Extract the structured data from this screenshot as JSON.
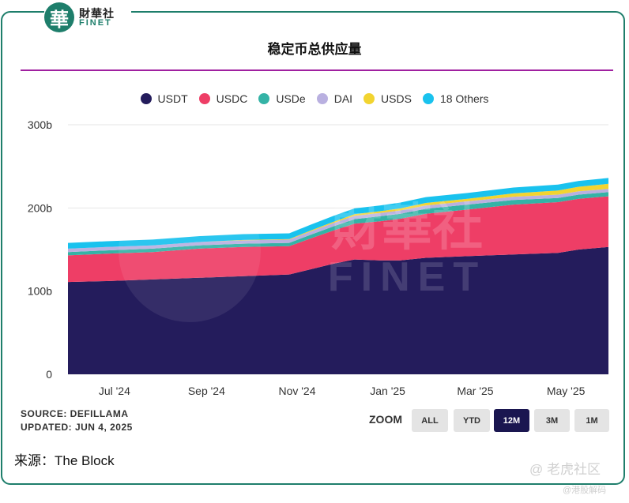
{
  "logo": {
    "mark": "華",
    "cn": "財華社",
    "en": "FINET"
  },
  "title": "稳定币总供应量",
  "legend": [
    {
      "name": "USDT",
      "color": "#241c5c"
    },
    {
      "name": "USDC",
      "color": "#ee3e66"
    },
    {
      "name": "USDe",
      "color": "#34b3a6"
    },
    {
      "name": "DAI",
      "color": "#b9b0e0"
    },
    {
      "name": "USDS",
      "color": "#f2d430"
    },
    {
      "name": "18 Others",
      "color": "#19c2ee"
    }
  ],
  "chart_data": {
    "type": "area",
    "stacked": true,
    "x_ticks": [
      "Jul '24",
      "Sep '24",
      "Nov '24",
      "Jan '25",
      "Mar '25",
      "May '25"
    ],
    "y_ticks": [
      "0",
      "100b",
      "200b",
      "300b"
    ],
    "ylim": [
      0,
      300
    ],
    "grid": true,
    "legend_position": "top",
    "x": [
      "2024-06-05",
      "2024-07-01",
      "2024-08-01",
      "2024-09-01",
      "2024-10-01",
      "2024-11-01",
      "2024-11-15",
      "2024-12-01",
      "2024-12-15",
      "2025-01-01",
      "2025-01-15",
      "2025-02-01",
      "2025-03-01",
      "2025-04-01",
      "2025-05-01",
      "2025-05-15",
      "2025-06-04"
    ],
    "series": [
      {
        "name": "USDT",
        "color": "#241c5c",
        "values": [
          111,
          112,
          114,
          116,
          118,
          120,
          126,
          133,
          138,
          137,
          137,
          140,
          142,
          144,
          146,
          150,
          153
        ]
      },
      {
        "name": "USDC",
        "color": "#ee3e66",
        "values": [
          32,
          33,
          33,
          35,
          35,
          34,
          37,
          40,
          43,
          47,
          50,
          53,
          56,
          60,
          61,
          61,
          61
        ]
      },
      {
        "name": "USDe",
        "color": "#34b3a6",
        "values": [
          4,
          4,
          4,
          4,
          4,
          4,
          4.5,
          5,
          5.5,
          6,
          6,
          6,
          6,
          5.5,
          5,
          5,
          5
        ]
      },
      {
        "name": "DAI",
        "color": "#b9b0e0",
        "values": [
          4,
          4,
          4,
          4,
          4,
          4,
          4,
          4,
          4,
          4,
          4,
          4,
          4,
          4,
          4,
          4,
          4
        ]
      },
      {
        "name": "USDS",
        "color": "#f2d430",
        "values": [
          0,
          0,
          0,
          0,
          0.5,
          0.5,
          1,
          1.5,
          2,
          2,
          2.5,
          3,
          3,
          4,
          5,
          5.5,
          6
        ]
      },
      {
        "name": "18 Others",
        "color": "#19c2ee",
        "values": [
          7,
          7,
          7,
          7,
          7,
          7,
          7,
          7,
          7,
          7,
          7,
          7,
          7,
          7,
          7,
          7,
          7
        ]
      }
    ]
  },
  "source": {
    "line1": "SOURCE: DEFILLAMA",
    "line2": "UPDATED: JUN 4, 2025"
  },
  "zoom": {
    "label": "ZOOM",
    "buttons": [
      {
        "label": "ALL",
        "active": false
      },
      {
        "label": "YTD",
        "active": false
      },
      {
        "label": "12M",
        "active": true
      },
      {
        "label": "3M",
        "active": false
      },
      {
        "label": "1M",
        "active": false
      }
    ]
  },
  "footer_source": "来源：The Block",
  "watermarks": {
    "center_cn": "財華社",
    "center_en": "FINET",
    "right_1": "@ 老虎社区",
    "right_2": "@港股解码"
  }
}
